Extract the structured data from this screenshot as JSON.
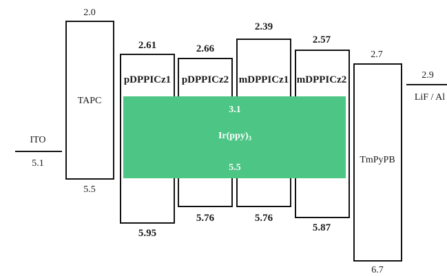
{
  "diagram": {
    "layers": [
      {
        "key": "ito",
        "name": "ITO",
        "lumo": "",
        "homo": "5.1"
      },
      {
        "key": "tapc",
        "name": "TAPC",
        "lumo": "2.0",
        "homo": "5.5"
      },
      {
        "key": "pdppicz1",
        "name": "pDPPICz1",
        "lumo": "2.61",
        "homo": "5.95"
      },
      {
        "key": "pdppicz2",
        "name": "pDPPICz2",
        "lumo": "2.66",
        "homo": "5.76"
      },
      {
        "key": "mdppicz1",
        "name": "mDPPICz1",
        "lumo": "2.39",
        "homo": "5.76"
      },
      {
        "key": "mdppicz2",
        "name": "mDPPICz2",
        "lumo": "2.57",
        "homo": "5.87"
      },
      {
        "key": "tmpypb",
        "name": "TmPyPB",
        "lumo": "2.7",
        "homo": "6.7"
      },
      {
        "key": "lifal",
        "name": "LiF / Al",
        "lumo": "2.9",
        "homo": ""
      }
    ],
    "dopant": {
      "name_base": "Ir(ppy)",
      "name_sub": "3",
      "lumo": "3.1",
      "homo": "5.5",
      "color": "#4cc585"
    }
  }
}
